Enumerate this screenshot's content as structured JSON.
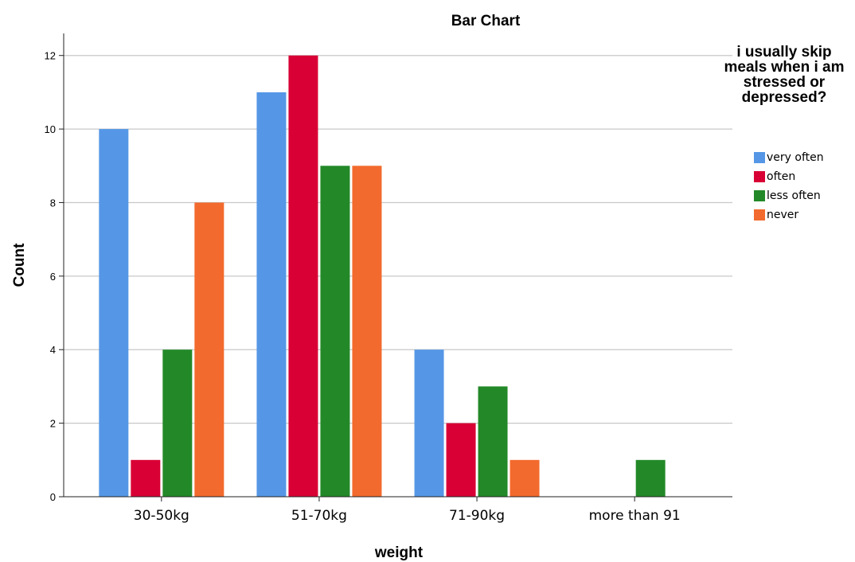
{
  "chart_data": {
    "type": "bar",
    "title": "Bar Chart",
    "xlabel": "weight",
    "ylabel": "Count",
    "categories": [
      "30-50kg",
      "51-70kg",
      "71-90kg",
      "more than 91"
    ],
    "series": [
      {
        "name": "very often",
        "color": "#5597e6",
        "values": [
          10,
          11,
          4,
          0
        ]
      },
      {
        "name": "often",
        "color": "#d80034",
        "values": [
          1,
          12,
          2,
          0
        ]
      },
      {
        "name": "less often",
        "color": "#238928",
        "values": [
          4,
          9,
          3,
          1
        ]
      },
      {
        "name": "never",
        "color": "#f26a2d",
        "values": [
          8,
          9,
          1,
          0
        ]
      }
    ],
    "ylim": [
      0,
      12.6
    ],
    "yticks": [
      0,
      2,
      4,
      6,
      8,
      10,
      12
    ],
    "grid": true,
    "legend": {
      "title": "i usually skip meals when i am stressed or depressed?",
      "position": "right"
    }
  }
}
